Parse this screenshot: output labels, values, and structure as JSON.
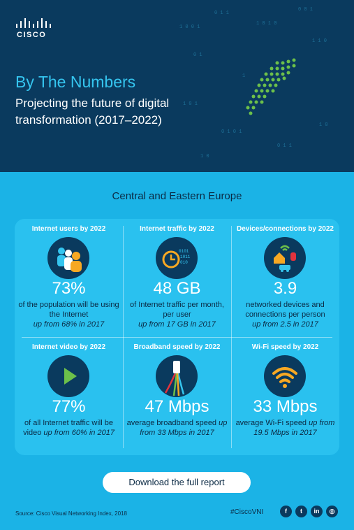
{
  "brand": {
    "logo_text": "CISCO"
  },
  "hero": {
    "title": "By The Numbers",
    "subtitle": "Projecting the future of digital transformation (2017–2022)"
  },
  "region": "Central and Eastern Europe",
  "stats": [
    {
      "title": "Internet users by 2022",
      "value": "73%",
      "desc": "of the population will be using the Internet",
      "note": "up from 68% in 2017",
      "icon": "people-icon"
    },
    {
      "title": "Internet traffic by 2022",
      "value": "48 GB",
      "desc": "of Internet traffic per month, per user",
      "note": "up from 17 GB in 2017",
      "icon": "clock-binary-icon"
    },
    {
      "title": "Devices/connections by 2022",
      "value": "3.9",
      "desc": "networked devices and connections per person",
      "note": "up from 2.5 in 2017",
      "icon": "connected-home-icon"
    },
    {
      "title": "Internet video by 2022",
      "value": "77%",
      "desc_pre": "of all Internet traffic will be video",
      "note": "up from 60% in 2017",
      "icon": "play-icon"
    },
    {
      "title": "Broadband speed by 2022",
      "value": "47 Mbps",
      "desc_pre": "average broadband speed",
      "note": "up from 33 Mbps in 2017",
      "icon": "fiber-cable-icon"
    },
    {
      "title": "Wi-Fi speed by 2022",
      "value": "33 Mbps",
      "desc_pre": "average Wi-Fi speed",
      "note": "up from 19.5 Mbps in 2017",
      "icon": "wifi-icon"
    }
  ],
  "cta": {
    "label": "Download the full report"
  },
  "footer": {
    "source": "Source: Cisco Visual Networking Index, 2018",
    "hashtag": "#CiscoVNI",
    "social": [
      {
        "name": "facebook-icon",
        "glyph": "f"
      },
      {
        "name": "twitter-icon",
        "glyph": "t"
      },
      {
        "name": "linkedin-icon",
        "glyph": "in"
      },
      {
        "name": "share-icon",
        "glyph": "◎"
      }
    ]
  },
  "colors": {
    "hero_bg": "#0a3a5e",
    "page_bg": "#1bb3e6",
    "panel_bg": "#2ac1ef",
    "icon_circle": "#0a3a5e",
    "accent_green": "#6cc04a",
    "accent_orange": "#f7a823",
    "accent_red": "#e2333d"
  }
}
